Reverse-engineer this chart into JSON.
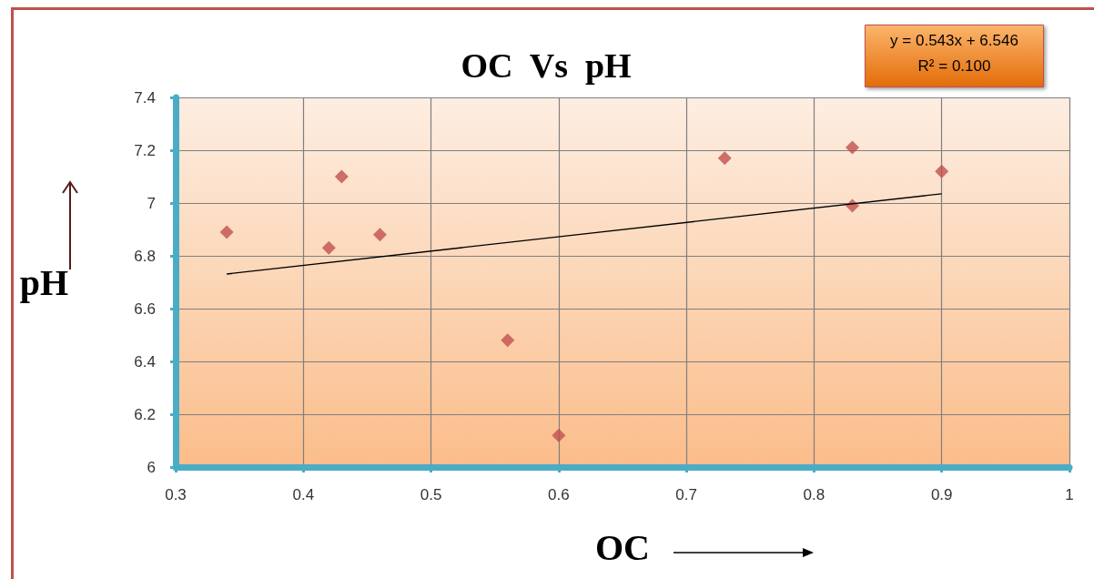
{
  "chart_data": {
    "type": "scatter",
    "title": "OC  Vs  pH",
    "xlabel": "OC",
    "ylabel": "pH",
    "annotations": [
      "y = 0.543x + 6.546",
      "R² = 0.100"
    ],
    "series": [
      {
        "marker": "diamond",
        "color": "#c0504d",
        "x": [
          0.34,
          0.42,
          0.43,
          0.46,
          0.56,
          0.6,
          0.73,
          0.83,
          0.83,
          0.9
        ],
        "values": [
          6.89,
          6.83,
          7.1,
          6.88,
          6.48,
          6.12,
          7.17,
          7.21,
          6.99,
          7.12
        ]
      },
      {
        "type": "line",
        "color": "#000000",
        "x": [
          0.34,
          0.9
        ],
        "values": [
          6.731,
          7.035
        ]
      }
    ],
    "xlim": [
      0.3,
      1
    ],
    "xticks": [
      0.3,
      0.4,
      0.5,
      0.6,
      0.7,
      0.8,
      0.9,
      1
    ],
    "ylim": [
      6,
      7.4
    ],
    "yticks": [
      6,
      6.2,
      6.4,
      6.6,
      6.8,
      7,
      7.2,
      7.4
    ],
    "grid": true
  }
}
